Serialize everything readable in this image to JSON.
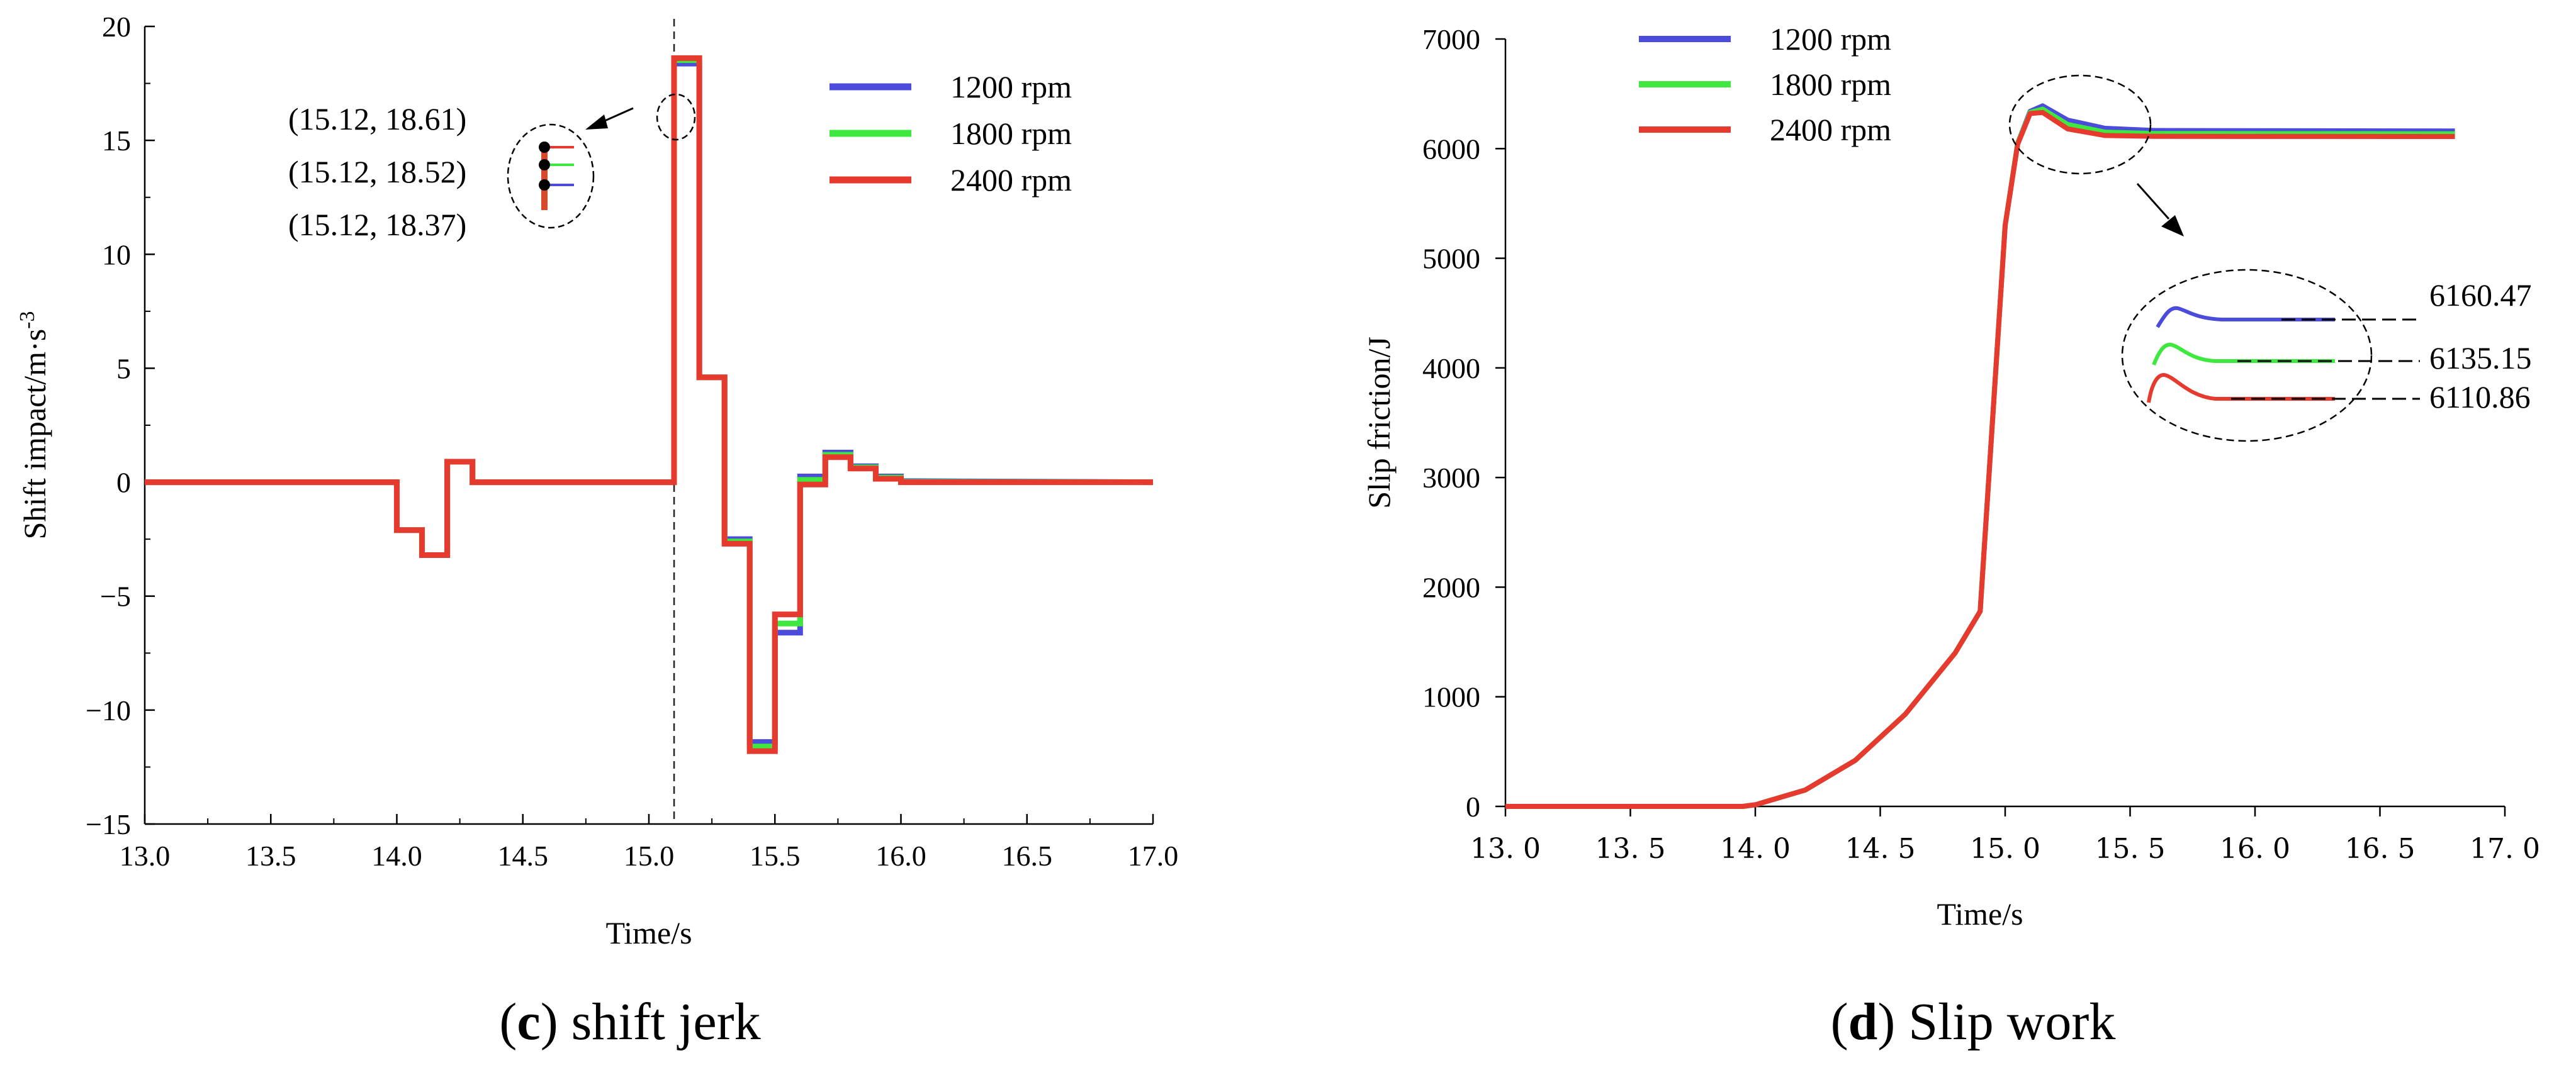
{
  "colors": {
    "1200 rpm": "#4b4bdc",
    "1800 rpm": "#3ee83e",
    "2400 rpm": "#e63a2e"
  },
  "chart_data": [
    {
      "id": "c",
      "type": "line",
      "caption_letter": "c",
      "caption_text": " shift jerk",
      "xlabel": "Time/s",
      "ylabel": "Shift impact/m·s",
      "ylabel_sup": "-3",
      "xlim": [
        13.0,
        17.0
      ],
      "ylim": [
        -15,
        20
      ],
      "xticks": [
        "13.0",
        "13.5",
        "14.0",
        "14.5",
        "15.0",
        "15.5",
        "16.0",
        "16.5",
        "17.0"
      ],
      "yticks": [
        "-15",
        "-10",
        "-5",
        "0",
        "5",
        "10",
        "15",
        "20"
      ],
      "legend": [
        "1200 rpm",
        "1800 rpm",
        "2400 rpm"
      ],
      "annotations": [
        "(15.12, 18.61)",
        "(15.12, 18.52)",
        "(15.12, 18.37)"
      ],
      "vline_x": 15.1,
      "series": [
        {
          "name": "1200 rpm",
          "values": [
            [
              13.0,
              0
            ],
            [
              14.0,
              0
            ],
            [
              14.0,
              -2.1
            ],
            [
              14.1,
              -2.1
            ],
            [
              14.1,
              -3.2
            ],
            [
              14.2,
              -3.2
            ],
            [
              14.2,
              0.9
            ],
            [
              14.3,
              0.9
            ],
            [
              14.3,
              0
            ],
            [
              15.1,
              0
            ],
            [
              15.1,
              18.37
            ],
            [
              15.2,
              18.37
            ],
            [
              15.2,
              4.6
            ],
            [
              15.3,
              4.6
            ],
            [
              15.3,
              -2.5
            ],
            [
              15.4,
              -2.5
            ],
            [
              15.4,
              -11.4
            ],
            [
              15.5,
              -11.4
            ],
            [
              15.5,
              -6.6
            ],
            [
              15.6,
              -6.6
            ],
            [
              15.6,
              0.25
            ],
            [
              15.7,
              0.25
            ],
            [
              15.7,
              1.3
            ],
            [
              15.8,
              1.3
            ],
            [
              15.8,
              0.7
            ],
            [
              15.9,
              0.7
            ],
            [
              15.9,
              0.25
            ],
            [
              16.0,
              0.25
            ],
            [
              16.0,
              0.05
            ],
            [
              17.0,
              0
            ]
          ]
        },
        {
          "name": "1800 rpm",
          "values": [
            [
              13.0,
              0
            ],
            [
              14.0,
              0
            ],
            [
              14.0,
              -2.1
            ],
            [
              14.1,
              -2.1
            ],
            [
              14.1,
              -3.2
            ],
            [
              14.2,
              -3.2
            ],
            [
              14.2,
              0.9
            ],
            [
              14.3,
              0.9
            ],
            [
              14.3,
              0
            ],
            [
              15.1,
              0
            ],
            [
              15.1,
              18.52
            ],
            [
              15.2,
              18.52
            ],
            [
              15.2,
              4.6
            ],
            [
              15.3,
              4.6
            ],
            [
              15.3,
              -2.6
            ],
            [
              15.4,
              -2.6
            ],
            [
              15.4,
              -11.6
            ],
            [
              15.5,
              -11.6
            ],
            [
              15.5,
              -6.2
            ],
            [
              15.6,
              -6.2
            ],
            [
              15.6,
              0.1
            ],
            [
              15.7,
              0.1
            ],
            [
              15.7,
              1.2
            ],
            [
              15.8,
              1.2
            ],
            [
              15.8,
              0.65
            ],
            [
              15.9,
              0.65
            ],
            [
              15.9,
              0.2
            ],
            [
              16.0,
              0.2
            ],
            [
              16.0,
              0.02
            ],
            [
              17.0,
              0
            ]
          ]
        },
        {
          "name": "2400 rpm",
          "values": [
            [
              13.0,
              0
            ],
            [
              14.0,
              0
            ],
            [
              14.0,
              -2.1
            ],
            [
              14.1,
              -2.1
            ],
            [
              14.1,
              -3.2
            ],
            [
              14.2,
              -3.2
            ],
            [
              14.2,
              0.9
            ],
            [
              14.3,
              0.9
            ],
            [
              14.3,
              0
            ],
            [
              15.1,
              0
            ],
            [
              15.1,
              18.61
            ],
            [
              15.2,
              18.61
            ],
            [
              15.2,
              4.6
            ],
            [
              15.3,
              4.6
            ],
            [
              15.3,
              -2.7
            ],
            [
              15.4,
              -2.7
            ],
            [
              15.4,
              -11.8
            ],
            [
              15.5,
              -11.8
            ],
            [
              15.5,
              -5.8
            ],
            [
              15.6,
              -5.8
            ],
            [
              15.6,
              -0.1
            ],
            [
              15.7,
              -0.1
            ],
            [
              15.7,
              1.1
            ],
            [
              15.8,
              1.1
            ],
            [
              15.8,
              0.6
            ],
            [
              15.9,
              0.6
            ],
            [
              15.9,
              0.15
            ],
            [
              16.0,
              0.15
            ],
            [
              16.0,
              0
            ],
            [
              17.0,
              0
            ]
          ]
        }
      ]
    },
    {
      "id": "d",
      "type": "line",
      "caption_letter": "d",
      "caption_text": " Slip work",
      "xlabel": "Time/s",
      "ylabel": "Slip friction/J",
      "xlim": [
        13.0,
        17.0
      ],
      "ylim": [
        0,
        7000
      ],
      "xticks": [
        "13. 0",
        "13. 5",
        "14. 0",
        "14. 5",
        "15. 0",
        "15. 5",
        "16. 0",
        "16. 5",
        "17. 0"
      ],
      "yticks": [
        "0",
        "1000",
        "2000",
        "3000",
        "4000",
        "5000",
        "6000",
        "7000"
      ],
      "legend": [
        "1200 rpm",
        "1800 rpm",
        "2400 rpm"
      ],
      "annotations": [
        "6160.47",
        "6135.15",
        "6110.86"
      ],
      "series": [
        {
          "name": "1200 rpm",
          "values": [
            [
              13.0,
              0
            ],
            [
              13.95,
              0
            ],
            [
              14.0,
              15
            ],
            [
              14.2,
              150
            ],
            [
              14.4,
              420
            ],
            [
              14.6,
              840
            ],
            [
              14.8,
              1400
            ],
            [
              14.9,
              1780
            ],
            [
              15.0,
              5300
            ],
            [
              15.05,
              6050
            ],
            [
              15.1,
              6340
            ],
            [
              15.15,
              6390
            ],
            [
              15.25,
              6260
            ],
            [
              15.4,
              6185
            ],
            [
              15.6,
              6165
            ],
            [
              16.8,
              6160.47
            ]
          ]
        },
        {
          "name": "1800 rpm",
          "values": [
            [
              13.0,
              0
            ],
            [
              13.95,
              0
            ],
            [
              14.0,
              15
            ],
            [
              14.2,
              150
            ],
            [
              14.4,
              420
            ],
            [
              14.6,
              840
            ],
            [
              14.8,
              1400
            ],
            [
              14.9,
              1780
            ],
            [
              15.0,
              5300
            ],
            [
              15.05,
              6050
            ],
            [
              15.1,
              6330
            ],
            [
              15.15,
              6360
            ],
            [
              15.25,
              6220
            ],
            [
              15.4,
              6150
            ],
            [
              15.6,
              6138
            ],
            [
              16.8,
              6135.15
            ]
          ]
        },
        {
          "name": "2400 rpm",
          "values": [
            [
              13.0,
              0
            ],
            [
              13.95,
              0
            ],
            [
              14.0,
              15
            ],
            [
              14.2,
              150
            ],
            [
              14.4,
              420
            ],
            [
              14.6,
              840
            ],
            [
              14.8,
              1400
            ],
            [
              14.9,
              1780
            ],
            [
              15.0,
              5300
            ],
            [
              15.05,
              6040
            ],
            [
              15.1,
              6320
            ],
            [
              15.15,
              6330
            ],
            [
              15.25,
              6180
            ],
            [
              15.4,
              6120
            ],
            [
              15.6,
              6112
            ],
            [
              16.8,
              6110.86
            ]
          ]
        }
      ]
    }
  ]
}
